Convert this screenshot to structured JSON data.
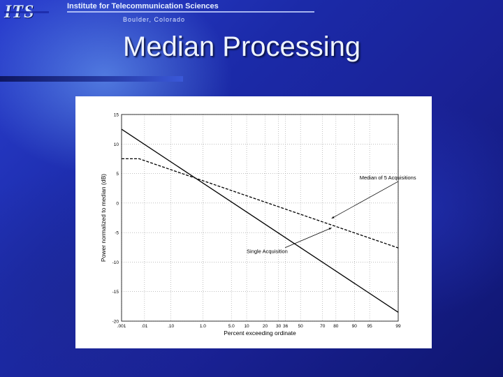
{
  "header": {
    "logo_text": "ITS",
    "org_name": "Institute for Telecommunication Sciences",
    "location": "Boulder, Colorado"
  },
  "slide": {
    "title": "Median Processing"
  },
  "chart_data": {
    "type": "line",
    "xlabel": "Percent exceeding ordinate",
    "ylabel": "Power normalized to median (dB)",
    "x_scale": "normal-probability",
    "xlim": [
      0.001,
      99
    ],
    "ylim": [
      -20,
      15
    ],
    "x_ticks": [
      {
        "value": 0.001,
        "label": ".001"
      },
      {
        "value": 0.01,
        "label": ".01"
      },
      {
        "value": 0.1,
        "label": ".10"
      },
      {
        "value": 1.0,
        "label": "1.0"
      },
      {
        "value": 5.0,
        "label": "5.0"
      },
      {
        "value": 10,
        "label": "10"
      },
      {
        "value": 20,
        "label": "20"
      },
      {
        "value": 30,
        "label": "30"
      },
      {
        "value": 36,
        "label": "36"
      },
      {
        "value": 50,
        "label": "50"
      },
      {
        "value": 70,
        "label": "70"
      },
      {
        "value": 80,
        "label": "80"
      },
      {
        "value": 90,
        "label": "90"
      },
      {
        "value": 95,
        "label": "95"
      },
      {
        "value": 99,
        "label": "99"
      }
    ],
    "y_ticks": [
      15,
      10,
      5,
      0,
      -5,
      -10,
      -15,
      -20
    ],
    "grid": "dotted",
    "series": [
      {
        "name": "Single Acquisition",
        "style": "solid",
        "x": [
          0.001,
          99
        ],
        "y": [
          12.5,
          -18.5
        ]
      },
      {
        "name": "Median of 5 Acquisitions",
        "style": "dashed",
        "x": [
          0.001,
          0.006,
          99
        ],
        "y": [
          7.5,
          7.5,
          -7.6
        ]
      }
    ],
    "annotations": [
      {
        "text": "Median of 5 Acquisitions",
        "x": 92,
        "y": 4,
        "points_to": {
          "x": 77,
          "y": -2.6
        }
      },
      {
        "text": "Single Acquisition",
        "x": 10,
        "y": -8.5,
        "points_to": {
          "x": 77,
          "y": -4.2
        }
      }
    ]
  }
}
